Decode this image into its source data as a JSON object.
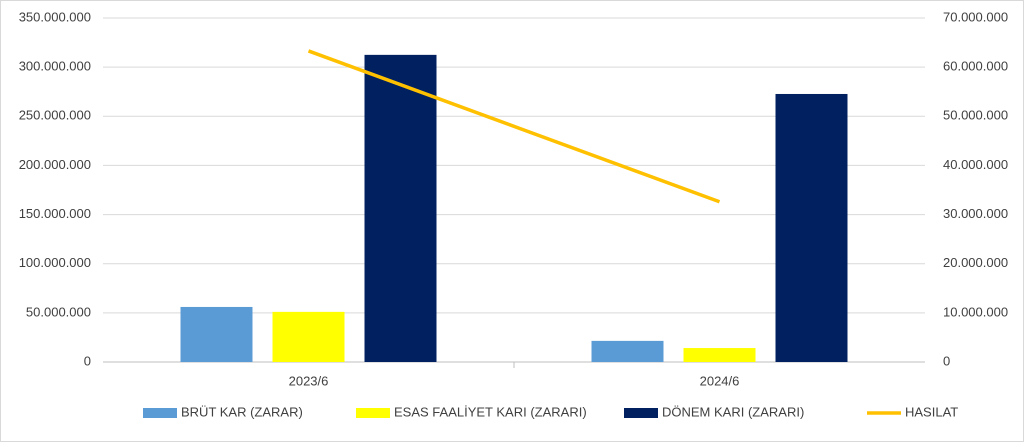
{
  "chart_data": {
    "type": "bar_line",
    "categories": [
      "2023/6",
      "2024/6"
    ],
    "series": [
      {
        "name": "BRÜT KAR (ZARAR)",
        "color": "#5b9bd5",
        "type": "bar",
        "values": [
          56000000,
          21500000
        ]
      },
      {
        "name": "ESAS FAALİYET KARI (ZARARI)",
        "color": "#ffff00",
        "type": "bar",
        "values": [
          51000000,
          14200000
        ]
      },
      {
        "name": "DÖNEM KARI (ZARARI)",
        "color": "#002060",
        "type": "bar",
        "values": [
          312500000,
          272700000
        ]
      },
      {
        "name": "HASILAT",
        "color": "#ffc000",
        "type": "line",
        "axis": "y2",
        "values": [
          63300000,
          32600000
        ]
      }
    ],
    "ylim": [
      0,
      350000000
    ],
    "yticks": [
      0,
      {
        "value": 50000000,
        "label": "50.000.000"
      },
      {
        "value": 100000000,
        "label": "100.000.000"
      },
      {
        "value": 150000000,
        "label": "150.000.000"
      },
      {
        "value": 200000000,
        "label": "200.000.000"
      },
      {
        "value": 250000000,
        "label": "250.000.000"
      },
      {
        "value": 300000000,
        "label": "300.000.000"
      },
      {
        "value": 350000000,
        "label": "350.000.000"
      }
    ],
    "y2lim": [
      0,
      70000000
    ],
    "y2ticks": [
      0,
      {
        "value": 10000000,
        "label": "10.000.000"
      },
      {
        "value": 20000000,
        "label": "20.000.000"
      },
      {
        "value": 30000000,
        "label": "30.000.000"
      },
      {
        "value": 40000000,
        "label": "40.000.000"
      },
      {
        "value": 50000000,
        "label": "50.000.000"
      },
      {
        "value": 60000000,
        "label": "60.000.000"
      },
      {
        "value": 70000000,
        "label": "70.000.000"
      }
    ],
    "grid": true,
    "legend": "bottom"
  }
}
